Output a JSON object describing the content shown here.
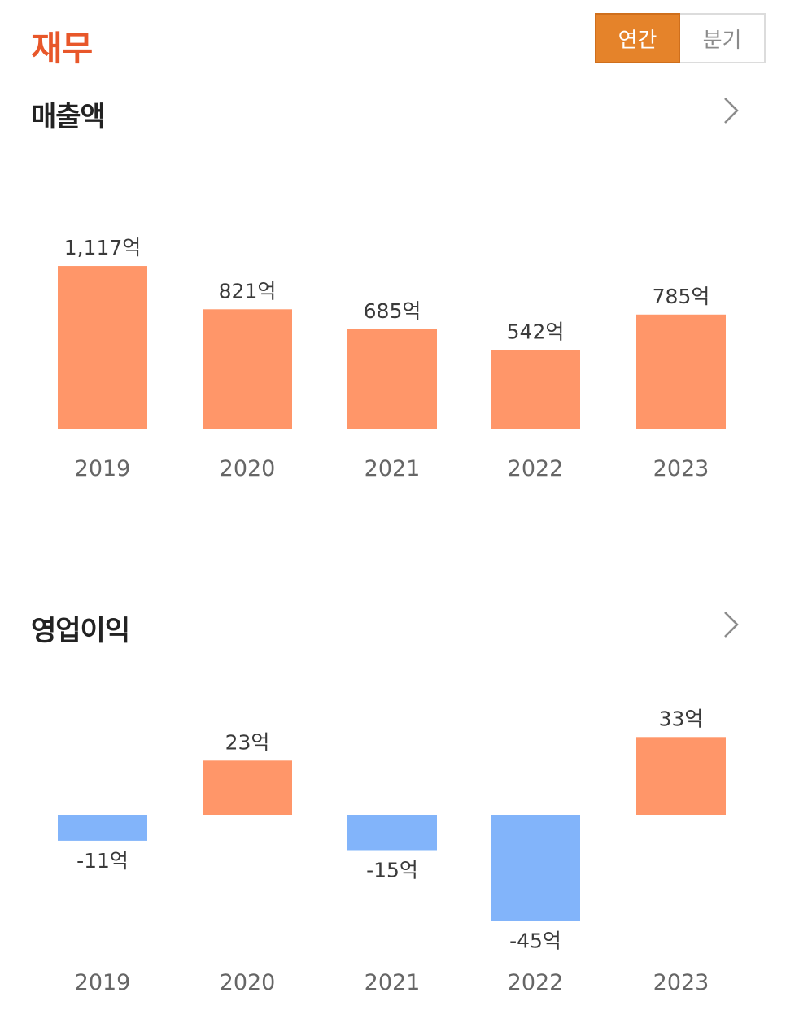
{
  "page": {
    "title": "재무",
    "toggle": {
      "annual": "연간",
      "quarterly": "분기",
      "selected": "annual"
    }
  },
  "colors": {
    "positive": "#ff9669",
    "negative": "#82b4fa",
    "accent": "#e5832a",
    "title": "#e8572a"
  },
  "chart_data": [
    {
      "type": "bar",
      "title": "매출액",
      "categories": [
        "2019",
        "2020",
        "2021",
        "2022",
        "2023"
      ],
      "values": [
        1117,
        821,
        685,
        542,
        785
      ],
      "data_labels": [
        "1,117억",
        "821억",
        "685억",
        "542억",
        "785억"
      ],
      "unit": "억",
      "grid": false
    },
    {
      "type": "bar",
      "title": "영업이익",
      "categories": [
        "2019",
        "2020",
        "2021",
        "2022",
        "2023"
      ],
      "values": [
        -11,
        23,
        -15,
        -45,
        33
      ],
      "data_labels": [
        "-11억",
        "23억",
        "-15억",
        "-45억",
        "33억"
      ],
      "unit": "억",
      "grid": false
    }
  ]
}
